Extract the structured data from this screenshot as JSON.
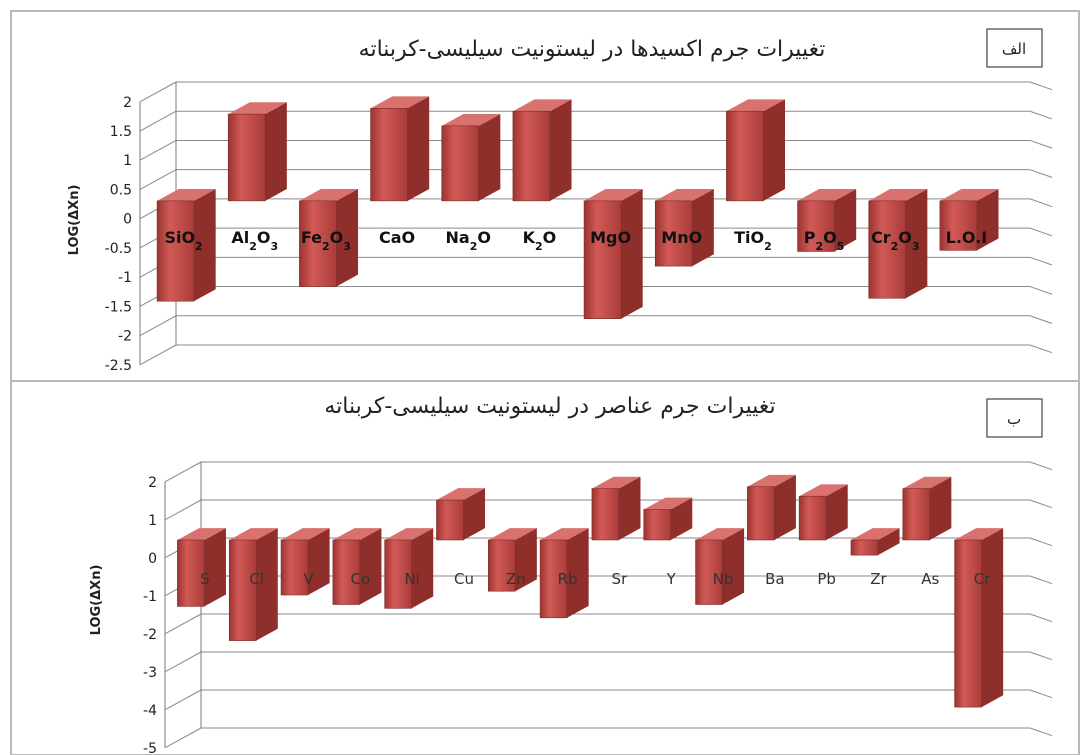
{
  "chart_data": [
    {
      "type": "bar",
      "title": "تغییرات جرم اکسیدها در لیستونیت سیلیسی-کربناته",
      "panel_tag": "الف",
      "ylabel": "LOG(ΔXn)",
      "ylim": [
        -2.5,
        2
      ],
      "yticks": [
        "2",
        "1.5",
        "1",
        "0.5",
        "0",
        "-0.5",
        "-1",
        "-1.5",
        "-2",
        "-2.5"
      ],
      "categories": [
        {
          "base": "SiO",
          "sub": "2"
        },
        {
          "base": "Al",
          "sub": "2",
          "base2": "O",
          "sub2": "3"
        },
        {
          "base": "Fe",
          "sub": "2",
          "base2": "O",
          "sub2": "3"
        },
        {
          "base": "CaO"
        },
        {
          "base": "Na",
          "sub": "2",
          "base2": "O"
        },
        {
          "base": "K",
          "sub": "2",
          "base2": "O"
        },
        {
          "base": "MgO"
        },
        {
          "base": "MnO"
        },
        {
          "base": "TiO",
          "sub": "2"
        },
        {
          "base": "P",
          "sub": "2",
          "base2": "O",
          "sub2": "5"
        },
        {
          "base": "Cr",
          "sub": "2",
          "base2": "O",
          "sub2": "3"
        },
        {
          "base": "L.O.I"
        }
      ],
      "values": [
        -1.75,
        1.45,
        -1.5,
        1.55,
        1.25,
        1.5,
        -2.05,
        -1.15,
        1.5,
        -0.9,
        -1.7,
        -0.88
      ],
      "bar_color": "#c0504d",
      "grid": true
    },
    {
      "type": "bar",
      "title": "تغییرات جرم عناصر در لیستونیت سیلیسی-کربناته",
      "panel_tag": "ب",
      "ylabel": "LOG(ΔXn)",
      "ylim": [
        -5,
        2
      ],
      "yticks": [
        "2",
        "1",
        "0",
        "-1",
        "-2",
        "-3",
        "-4",
        "-5"
      ],
      "categories": [
        {
          "base": "S"
        },
        {
          "base": "Cl"
        },
        {
          "base": "V"
        },
        {
          "base": "Co"
        },
        {
          "base": "Ni"
        },
        {
          "base": "Cu"
        },
        {
          "base": "Zn"
        },
        {
          "base": "Rb"
        },
        {
          "base": "Sr"
        },
        {
          "base": "Y"
        },
        {
          "base": "Nb"
        },
        {
          "base": "Ba"
        },
        {
          "base": "Pb"
        },
        {
          "base": "Zr"
        },
        {
          "base": "As"
        },
        {
          "base": "Cr"
        }
      ],
      "values": [
        -1.8,
        -2.7,
        -1.5,
        -1.75,
        -1.85,
        1.0,
        -1.4,
        -2.1,
        1.3,
        0.75,
        -1.75,
        1.35,
        1.1,
        -0.45,
        1.3,
        -4.45
      ],
      "bar_color": "#c0504d",
      "grid": true
    }
  ]
}
